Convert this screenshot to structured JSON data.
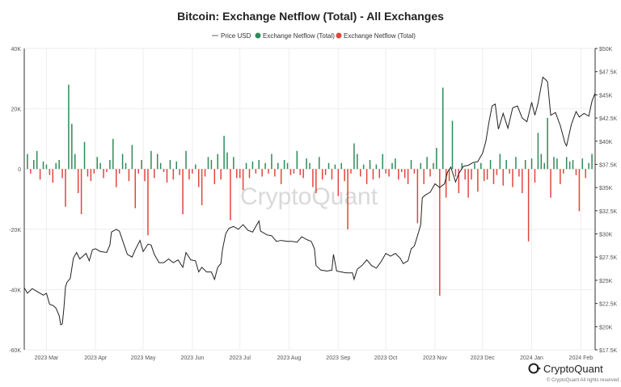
{
  "brand": {
    "name": "CryptoQuant",
    "copyright": "© CryptoQuant All rights reserved."
  },
  "colors": {
    "inflow": "#2e8b57",
    "outflow": "#e0463c",
    "price": "#222222",
    "grid": "#eeeeee",
    "axis": "#333333"
  },
  "chart_data": {
    "type": "bar",
    "title": "Bitcoin: Exchange Netflow (Total) - All Exchanges",
    "watermark": "CryptoQuant",
    "legend": [
      "Price USD",
      "Exchange Netflow (Total)",
      "Exchange Netflow (Total)"
    ],
    "legend_position": "top-center",
    "grid": true,
    "x_range": [
      "2023-02-15",
      "2024-02-10"
    ],
    "x_ticks": [
      {
        "date": "2023-03-01",
        "label": "2023 Mar"
      },
      {
        "date": "2023-04-01",
        "label": "2023 Apr"
      },
      {
        "date": "2023-05-01",
        "label": "2023 May"
      },
      {
        "date": "2023-06-01",
        "label": "2023 Jun"
      },
      {
        "date": "2023-07-01",
        "label": "2023 Jul"
      },
      {
        "date": "2023-08-01",
        "label": "2023 Aug"
      },
      {
        "date": "2023-09-01",
        "label": "2023 Sep"
      },
      {
        "date": "2023-10-01",
        "label": "2023 Oct"
      },
      {
        "date": "2023-11-01",
        "label": "2023 Nov"
      },
      {
        "date": "2023-12-01",
        "label": "2023 Dec"
      },
      {
        "date": "2024-01-01",
        "label": "2024 Jan"
      },
      {
        "date": "2024-02-01",
        "label": "2024 Feb"
      }
    ],
    "y_left": {
      "range": [
        -60000,
        40000
      ],
      "ticks": [
        40000,
        20000,
        0,
        -20000,
        -40000,
        -60000
      ],
      "tick_labels": [
        "40K",
        "20K",
        "0",
        "-20K",
        "-40K",
        "-60K"
      ]
    },
    "y_right": {
      "range": [
        17500,
        50000
      ],
      "ticks": [
        50000,
        47500,
        45000,
        42500,
        40000,
        37500,
        35000,
        32500,
        30000,
        27500,
        25000,
        22500,
        20000,
        17500
      ],
      "tick_labels": [
        "$50K",
        "$47.5K",
        "$45K",
        "$42.5K",
        "$40K",
        "$37.5K",
        "$35K",
        "$32.5K",
        "$30K",
        "$27.5K",
        "$25K",
        "$22.5K",
        "$20K",
        "$17.5K"
      ]
    },
    "price_series": {
      "name": "Price USD",
      "points": [
        [
          "2023-02-15",
          24200
        ],
        [
          "2023-02-17",
          23600
        ],
        [
          "2023-02-20",
          24100
        ],
        [
          "2023-02-23",
          23800
        ],
        [
          "2023-02-27",
          23400
        ],
        [
          "2023-03-01",
          23600
        ],
        [
          "2023-03-03",
          22400
        ],
        [
          "2023-03-05",
          22300
        ],
        [
          "2023-03-07",
          22000
        ],
        [
          "2023-03-09",
          21200
        ],
        [
          "2023-03-10",
          20200
        ],
        [
          "2023-03-11",
          20300
        ],
        [
          "2023-03-12",
          22000
        ],
        [
          "2023-03-13",
          24300
        ],
        [
          "2023-03-14",
          24800
        ],
        [
          "2023-03-16",
          25200
        ],
        [
          "2023-03-18",
          27400
        ],
        [
          "2023-03-20",
          28000
        ],
        [
          "2023-03-22",
          27300
        ],
        [
          "2023-03-24",
          27600
        ],
        [
          "2023-03-26",
          27900
        ],
        [
          "2023-03-28",
          27100
        ],
        [
          "2023-03-30",
          28300
        ],
        [
          "2023-04-01",
          28400
        ],
        [
          "2023-04-04",
          28100
        ],
        [
          "2023-04-08",
          28000
        ],
        [
          "2023-04-10",
          28800
        ],
        [
          "2023-04-11",
          30200
        ],
        [
          "2023-04-14",
          30500
        ],
        [
          "2023-04-16",
          30300
        ],
        [
          "2023-04-19",
          28800
        ],
        [
          "2023-04-21",
          27800
        ],
        [
          "2023-04-24",
          27500
        ],
        [
          "2023-04-26",
          28300
        ],
        [
          "2023-04-29",
          29300
        ],
        [
          "2023-05-01",
          28100
        ],
        [
          "2023-05-04",
          28900
        ],
        [
          "2023-05-06",
          28800
        ],
        [
          "2023-05-08",
          27800
        ],
        [
          "2023-05-11",
          26900
        ],
        [
          "2023-05-14",
          26900
        ],
        [
          "2023-05-17",
          27300
        ],
        [
          "2023-05-20",
          26900
        ],
        [
          "2023-05-23",
          27200
        ],
        [
          "2023-05-26",
          26400
        ],
        [
          "2023-05-28",
          28000
        ],
        [
          "2023-05-31",
          27200
        ],
        [
          "2023-06-03",
          27100
        ],
        [
          "2023-06-05",
          25900
        ],
        [
          "2023-06-07",
          26400
        ],
        [
          "2023-06-10",
          25900
        ],
        [
          "2023-06-13",
          25900
        ],
        [
          "2023-06-15",
          25100
        ],
        [
          "2023-06-17",
          26400
        ],
        [
          "2023-06-19",
          26800
        ],
        [
          "2023-06-20",
          28300
        ],
        [
          "2023-06-22",
          30000
        ],
        [
          "2023-06-24",
          30600
        ],
        [
          "2023-06-27",
          30800
        ],
        [
          "2023-06-30",
          30500
        ],
        [
          "2023-07-03",
          31000
        ],
        [
          "2023-07-06",
          30400
        ],
        [
          "2023-07-09",
          30200
        ],
        [
          "2023-07-13",
          31400
        ],
        [
          "2023-07-14",
          30300
        ],
        [
          "2023-07-18",
          29900
        ],
        [
          "2023-07-21",
          29800
        ],
        [
          "2023-07-24",
          29200
        ],
        [
          "2023-07-27",
          29300
        ],
        [
          "2023-07-31",
          29200
        ],
        [
          "2023-08-03",
          29200
        ],
        [
          "2023-08-06",
          29100
        ],
        [
          "2023-08-09",
          29700
        ],
        [
          "2023-08-12",
          29400
        ],
        [
          "2023-08-15",
          29200
        ],
        [
          "2023-08-17",
          28400
        ],
        [
          "2023-08-18",
          26600
        ],
        [
          "2023-08-21",
          26100
        ],
        [
          "2023-08-25",
          26000
        ],
        [
          "2023-08-28",
          26100
        ],
        [
          "2023-08-29",
          27800
        ],
        [
          "2023-08-31",
          26000
        ],
        [
          "2023-09-03",
          25900
        ],
        [
          "2023-09-06",
          25800
        ],
        [
          "2023-09-10",
          25800
        ],
        [
          "2023-09-11",
          25100
        ],
        [
          "2023-09-13",
          26200
        ],
        [
          "2023-09-16",
          26600
        ],
        [
          "2023-09-19",
          27200
        ],
        [
          "2023-09-22",
          26600
        ],
        [
          "2023-09-25",
          26300
        ],
        [
          "2023-09-28",
          27000
        ],
        [
          "2023-10-01",
          27900
        ],
        [
          "2023-10-04",
          27600
        ],
        [
          "2023-10-07",
          27900
        ],
        [
          "2023-10-10",
          27400
        ],
        [
          "2023-10-12",
          26800
        ],
        [
          "2023-10-15",
          27100
        ],
        [
          "2023-10-17",
          28400
        ],
        [
          "2023-10-19",
          28700
        ],
        [
          "2023-10-21",
          29800
        ],
        [
          "2023-10-23",
          31000
        ],
        [
          "2023-10-24",
          33900
        ],
        [
          "2023-10-26",
          34200
        ],
        [
          "2023-10-29",
          34500
        ],
        [
          "2023-11-01",
          35400
        ],
        [
          "2023-11-04",
          35000
        ],
        [
          "2023-11-07",
          35400
        ],
        [
          "2023-11-09",
          36700
        ],
        [
          "2023-11-11",
          37200
        ],
        [
          "2023-11-14",
          35600
        ],
        [
          "2023-11-16",
          36500
        ],
        [
          "2023-11-19",
          37300
        ],
        [
          "2023-11-22",
          37400
        ],
        [
          "2023-11-25",
          37700
        ],
        [
          "2023-11-28",
          37800
        ],
        [
          "2023-12-01",
          38700
        ],
        [
          "2023-12-03",
          39900
        ],
        [
          "2023-12-05",
          42000
        ],
        [
          "2023-12-07",
          43800
        ],
        [
          "2023-12-09",
          44000
        ],
        [
          "2023-12-11",
          41300
        ],
        [
          "2023-12-14",
          43000
        ],
        [
          "2023-12-17",
          41400
        ],
        [
          "2023-12-20",
          43600
        ],
        [
          "2023-12-23",
          43800
        ],
        [
          "2023-12-26",
          42500
        ],
        [
          "2023-12-29",
          42100
        ],
        [
          "2024-01-01",
          44200
        ],
        [
          "2024-01-03",
          42800
        ],
        [
          "2024-01-05",
          44100
        ],
        [
          "2024-01-08",
          46900
        ],
        [
          "2024-01-10",
          46600
        ],
        [
          "2024-01-11",
          46400
        ],
        [
          "2024-01-13",
          42800
        ],
        [
          "2024-01-16",
          43100
        ],
        [
          "2024-01-19",
          41700
        ],
        [
          "2024-01-22",
          39800
        ],
        [
          "2024-01-23",
          39500
        ],
        [
          "2024-01-26",
          41800
        ],
        [
          "2024-01-29",
          43200
        ],
        [
          "2024-01-31",
          42600
        ],
        [
          "2024-02-03",
          43000
        ],
        [
          "2024-02-06",
          42700
        ],
        [
          "2024-02-08",
          44300
        ],
        [
          "2024-02-10",
          45200
        ]
      ]
    },
    "netflow_bars": {
      "x": [
        "2023-02-17",
        "2023-02-19",
        "2023-02-21",
        "2023-02-23",
        "2023-02-25",
        "2023-02-27",
        "2023-03-01",
        "2023-03-03",
        "2023-03-05",
        "2023-03-07",
        "2023-03-09",
        "2023-03-11",
        "2023-03-13",
        "2023-03-15",
        "2023-03-17",
        "2023-03-19",
        "2023-03-21",
        "2023-03-23",
        "2023-03-25",
        "2023-03-27",
        "2023-03-29",
        "2023-03-31",
        "2023-04-02",
        "2023-04-04",
        "2023-04-06",
        "2023-04-08",
        "2023-04-10",
        "2023-04-12",
        "2023-04-14",
        "2023-04-16",
        "2023-04-18",
        "2023-04-20",
        "2023-04-22",
        "2023-04-24",
        "2023-04-26",
        "2023-04-28",
        "2023-04-30",
        "2023-05-02",
        "2023-05-04",
        "2023-05-06",
        "2023-05-08",
        "2023-05-10",
        "2023-05-12",
        "2023-05-14",
        "2023-05-16",
        "2023-05-18",
        "2023-05-20",
        "2023-05-22",
        "2023-05-24",
        "2023-05-26",
        "2023-05-28",
        "2023-05-30",
        "2023-06-01",
        "2023-06-03",
        "2023-06-05",
        "2023-06-07",
        "2023-06-09",
        "2023-06-11",
        "2023-06-13",
        "2023-06-15",
        "2023-06-17",
        "2023-06-19",
        "2023-06-21",
        "2023-06-23",
        "2023-06-25",
        "2023-06-27",
        "2023-06-29",
        "2023-07-01",
        "2023-07-03",
        "2023-07-05",
        "2023-07-07",
        "2023-07-09",
        "2023-07-11",
        "2023-07-13",
        "2023-07-15",
        "2023-07-17",
        "2023-07-19",
        "2023-07-21",
        "2023-07-23",
        "2023-07-25",
        "2023-07-27",
        "2023-07-29",
        "2023-07-31",
        "2023-08-02",
        "2023-08-04",
        "2023-08-06",
        "2023-08-08",
        "2023-08-10",
        "2023-08-12",
        "2023-08-14",
        "2023-08-16",
        "2023-08-18",
        "2023-08-20",
        "2023-08-22",
        "2023-08-24",
        "2023-08-26",
        "2023-08-28",
        "2023-08-30",
        "2023-09-01",
        "2023-09-03",
        "2023-09-05",
        "2023-09-07",
        "2023-09-09",
        "2023-09-11",
        "2023-09-13",
        "2023-09-15",
        "2023-09-17",
        "2023-09-19",
        "2023-09-21",
        "2023-09-23",
        "2023-09-25",
        "2023-09-27",
        "2023-09-29",
        "2023-10-01",
        "2023-10-03",
        "2023-10-05",
        "2023-10-07",
        "2023-10-09",
        "2023-10-11",
        "2023-10-13",
        "2023-10-15",
        "2023-10-17",
        "2023-10-19",
        "2023-10-21",
        "2023-10-23",
        "2023-10-25",
        "2023-10-27",
        "2023-10-29",
        "2023-10-31",
        "2023-11-02",
        "2023-11-04",
        "2023-11-06",
        "2023-11-08",
        "2023-11-10",
        "2023-11-12",
        "2023-11-14",
        "2023-11-16",
        "2023-11-18",
        "2023-11-20",
        "2023-11-22",
        "2023-11-24",
        "2023-11-26",
        "2023-11-28",
        "2023-11-30",
        "2023-12-02",
        "2023-12-04",
        "2023-12-06",
        "2023-12-08",
        "2023-12-10",
        "2023-12-12",
        "2023-12-14",
        "2023-12-16",
        "2023-12-18",
        "2023-12-20",
        "2023-12-22",
        "2023-12-24",
        "2023-12-26",
        "2023-12-28",
        "2023-12-30",
        "2024-01-01",
        "2024-01-03",
        "2024-01-05",
        "2024-01-07",
        "2024-01-09",
        "2024-01-11",
        "2024-01-13",
        "2024-01-15",
        "2024-01-17",
        "2024-01-19",
        "2024-01-21",
        "2024-01-23",
        "2024-01-25",
        "2024-01-27",
        "2024-01-29",
        "2024-01-31",
        "2024-02-02",
        "2024-02-04",
        "2024-02-06",
        "2024-02-08"
      ],
      "values": [
        5000,
        -1500,
        3000,
        6000,
        -3500,
        2500,
        1500,
        -2000,
        -4500,
        2000,
        3000,
        -3000,
        -12500,
        28000,
        15000,
        5000,
        -8000,
        -15000,
        9000,
        -2500,
        -4000,
        -1500,
        4000,
        2000,
        -3000,
        -1000,
        3000,
        10000,
        -6000,
        -1500,
        5000,
        2000,
        -4000,
        8000,
        -13000,
        -1500,
        3000,
        -4000,
        -22000,
        6000,
        -3000,
        5000,
        2000,
        -1000,
        -4500,
        3000,
        -3500,
        2500,
        -2000,
        -15000,
        6000,
        -3500,
        -1500,
        1500,
        -6000,
        -12000,
        -2500,
        4000,
        3000,
        -5000,
        5000,
        -3500,
        11000,
        5500,
        -17000,
        4000,
        -3000,
        -3000,
        -7000,
        2000,
        -3000,
        2500,
        -1500,
        3000,
        -2500,
        2000,
        -1500,
        5000,
        -2500,
        2000,
        -5000,
        3000,
        2000,
        -2000,
        -1500,
        6000,
        -2000,
        -3000,
        3500,
        2000,
        -6000,
        -8000,
        4000,
        -3500,
        -2000,
        2000,
        -3500,
        1500,
        -9000,
        2000,
        -4000,
        -20000,
        -1500,
        8500,
        5000,
        -2500,
        1500,
        -5000,
        3000,
        -3500,
        1500,
        -3000,
        5000,
        -1500,
        -2500,
        2000,
        3500,
        -3500,
        -1000,
        -3000,
        -5000,
        3000,
        -1500,
        -18000,
        2000,
        -5000,
        4000,
        -2500,
        2000,
        7000,
        -42000,
        27000,
        -9500,
        -4000,
        16000,
        -2500,
        -8000,
        2000,
        -3500,
        -9500,
        -3500,
        2000,
        -7500,
        2000,
        -4000,
        -3500,
        3000,
        -5000,
        -2000,
        5000,
        -5500,
        3000,
        -1500,
        -6000,
        4000,
        -2500,
        -8000,
        3000,
        -24000,
        3500,
        -4500,
        12000,
        5000,
        2000,
        17000,
        -9500,
        4000,
        3500,
        -5000,
        -1500,
        4000,
        2500,
        3000,
        -2000,
        -14000,
        3500,
        -3000,
        2000,
        5000
      ]
    }
  }
}
